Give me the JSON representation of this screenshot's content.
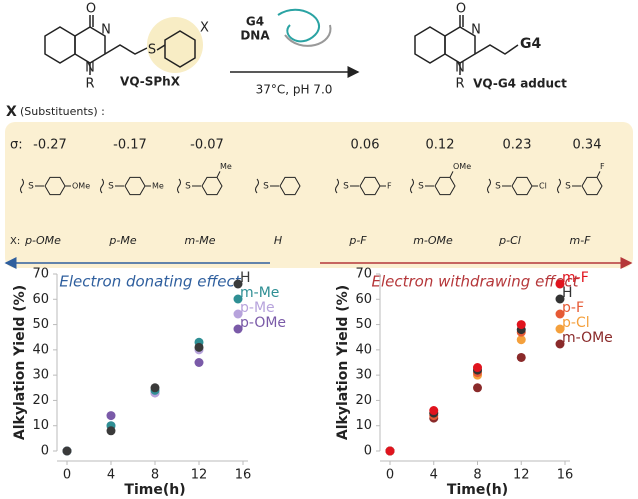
{
  "scheme": {
    "reactant_atoms": [
      "O",
      "N",
      "N",
      "R",
      "S",
      "X"
    ],
    "reactant_label": "VQ-SPhX",
    "reagent": [
      "G4",
      "DNA"
    ],
    "conditions": "37°C, pH 7.0",
    "product_atoms": [
      "O",
      "N",
      "N",
      "R"
    ],
    "product_group": "G4",
    "product_label": "VQ-G4 adduct"
  },
  "substituents": {
    "heading": "X",
    "heading_note": "(Substituents) :",
    "sigma_label": "σ:",
    "x_label": "X:",
    "items": [
      {
        "sigma": "-0.27",
        "name": "p-OMe",
        "group": "OMe",
        "position": "para"
      },
      {
        "sigma": "-0.17",
        "name": "p-Me",
        "group": "Me",
        "position": "para"
      },
      {
        "sigma": "-0.07",
        "name": "m-Me",
        "group": "Me",
        "position": "meta"
      },
      {
        "name": "H"
      },
      {
        "sigma": "0.06",
        "name": "p-F",
        "group": "F",
        "position": "para"
      },
      {
        "sigma": "0.12",
        "name": "m-OMe",
        "group": "OMe",
        "position": "meta"
      },
      {
        "sigma": "0.23",
        "name": "p-Cl",
        "group": "Cl",
        "position": "para"
      },
      {
        "sigma": "0.34",
        "name": "m-F",
        "group": "F",
        "position": "meta"
      }
    ]
  },
  "effects": {
    "donating": "Electron donating effect",
    "withdrawing": "Electron withdrawing effect"
  },
  "chart_data": [
    {
      "type": "scatter",
      "x_label": "Time(h)",
      "y_label": "Alkylation Yield (%)",
      "x": [
        0,
        4,
        8,
        12
      ],
      "xlim": [
        0,
        16
      ],
      "xticks": [
        0,
        4,
        8,
        12,
        16
      ],
      "ylim": [
        0,
        70
      ],
      "yticks": [
        0,
        10,
        20,
        30,
        40,
        50,
        60,
        70
      ],
      "legend": "upper right",
      "series": [
        {
          "name": "H",
          "color": "#3a3a3a",
          "values": [
            0,
            8,
            25,
            41
          ]
        },
        {
          "name": "m-Me",
          "color": "#2f8f94",
          "values": [
            0,
            10,
            24,
            43
          ]
        },
        {
          "name": "p-Me",
          "color": "#b7a3dc",
          "values": [
            0,
            10,
            23,
            40
          ]
        },
        {
          "name": "p-OMe",
          "color": "#7a5aa8",
          "values": [
            0,
            14,
            23,
            35
          ]
        }
      ]
    },
    {
      "type": "scatter",
      "x_label": "Time(h)",
      "y_label": "Alkylation Yield (%)",
      "x": [
        0,
        4,
        8,
        12
      ],
      "xlim": [
        0,
        16
      ],
      "xticks": [
        0,
        4,
        8,
        12,
        16
      ],
      "ylim": [
        0,
        70
      ],
      "yticks": [
        0,
        10,
        20,
        30,
        40,
        50,
        60,
        70
      ],
      "legend": "upper right",
      "series": [
        {
          "name": "m-F",
          "color": "#e0141e",
          "values": [
            0,
            16,
            33,
            50
          ]
        },
        {
          "name": "H",
          "color": "#333333",
          "values": [
            0,
            15,
            32,
            48
          ]
        },
        {
          "name": "p-F",
          "color": "#e65a35",
          "values": [
            0,
            14,
            31,
            47
          ]
        },
        {
          "name": "p-Cl",
          "color": "#f4a03c",
          "values": [
            0,
            15,
            30,
            44
          ]
        },
        {
          "name": "m-OMe",
          "color": "#8a2a2a",
          "values": [
            0,
            13,
            25,
            37
          ]
        }
      ]
    }
  ]
}
